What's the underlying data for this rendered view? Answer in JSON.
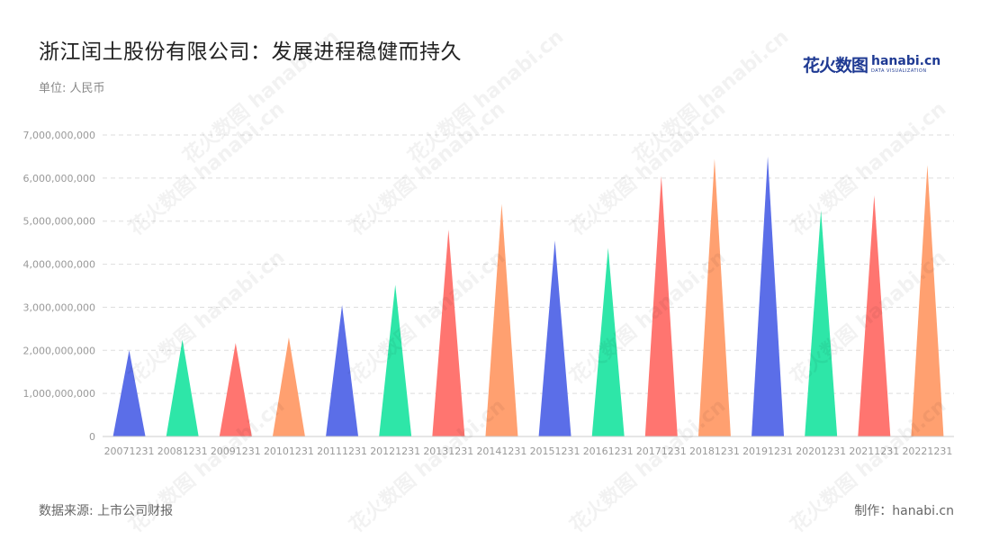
{
  "header": {
    "title": "浙江闰土股份有限公司：发展进程稳健而持久",
    "unit": "单位: 人民币"
  },
  "logo": {
    "cn": "花火数图",
    "en": "hanabi.cn",
    "en_sub": "DATA VISUALIZATION"
  },
  "footer": {
    "source": "数据来源: 上市公司财报",
    "maker": "制作：hanabi.cn"
  },
  "watermark_text": "花火数图 hanabi.cn",
  "chart_data": {
    "type": "bar",
    "bar_shape": "triangle",
    "categories": [
      "20071231",
      "20081231",
      "20091231",
      "20101231",
      "20111231",
      "20121231",
      "20131231",
      "20141231",
      "20151231",
      "20161231",
      "20171231",
      "20181231",
      "20191231",
      "20201231",
      "20211231",
      "20221231"
    ],
    "values": [
      2000000000,
      2250000000,
      2170000000,
      2300000000,
      3050000000,
      3520000000,
      4800000000,
      5400000000,
      4550000000,
      4380000000,
      6050000000,
      6450000000,
      6500000000,
      5250000000,
      5600000000,
      6300000000
    ],
    "colors": [
      "#5b6ee8",
      "#2ee6a8",
      "#ff7570",
      "#ffa070"
    ],
    "ylim": [
      0,
      7000000000
    ],
    "yticks": [
      "0",
      "1,000,000,000",
      "2,000,000,000",
      "3,000,000,000",
      "4,000,000,000",
      "5,000,000,000",
      "6,000,000,000",
      "7,000,000,000"
    ],
    "ytick_values": [
      0,
      1000000000,
      2000000000,
      3000000000,
      4000000000,
      5000000000,
      6000000000,
      7000000000
    ],
    "grid": true,
    "legend": "none",
    "title": "",
    "xlabel": "",
    "ylabel": ""
  }
}
